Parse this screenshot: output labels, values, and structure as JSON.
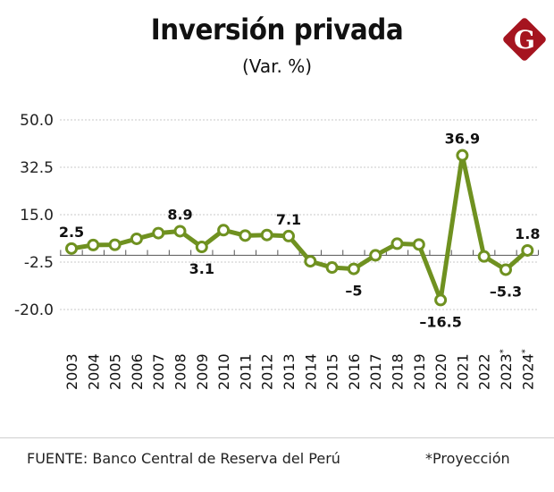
{
  "header": {
    "title": "Inversión privada",
    "subtitle": "(Var. %)",
    "logo_letter": "G"
  },
  "colors": {
    "line": "#6f9120",
    "logo": "#a5141f",
    "grid": "#c8c8c8",
    "text": "#111111"
  },
  "footer": {
    "source": "FUENTE: Banco Central de Reserva del Perú",
    "note": "*Proyección"
  },
  "chart_data": {
    "type": "line",
    "title": "Inversión privada",
    "subtitle": "(Var. %)",
    "xlabel": "",
    "ylabel": "",
    "ylim": [
      -20.0,
      50.0
    ],
    "yticks": [
      50.0,
      32.5,
      15.0,
      -2.5,
      -20.0
    ],
    "ytick_labels": [
      "50.0",
      "32.5",
      "15.0",
      "-2.5",
      "-20.0"
    ],
    "grid": true,
    "categories": [
      "2003",
      "2004",
      "2005",
      "2006",
      "2007",
      "2008",
      "2009",
      "2010",
      "2011",
      "2012",
      "2013",
      "2014",
      "2015",
      "2016",
      "2017",
      "2018",
      "2019",
      "2020",
      "2021",
      "2022",
      "2023*",
      "2024*"
    ],
    "series": [
      {
        "name": "Inversión privada (Var. %)",
        "values": [
          2.5,
          3.8,
          3.9,
          6.1,
          8.2,
          8.9,
          3.1,
          9.3,
          7.3,
          7.5,
          7.1,
          -2.2,
          -4.5,
          -5.0,
          0.0,
          4.3,
          4.0,
          -16.5,
          36.9,
          -0.4,
          -5.3,
          1.8
        ]
      }
    ],
    "data_labels": [
      {
        "index": 0,
        "text": "2.5",
        "position": "above"
      },
      {
        "index": 5,
        "text": "8.9",
        "position": "above"
      },
      {
        "index": 6,
        "text": "3.1",
        "position": "below"
      },
      {
        "index": 10,
        "text": "7.1",
        "position": "above"
      },
      {
        "index": 13,
        "text": "-5",
        "position": "below"
      },
      {
        "index": 17,
        "text": "-16.5",
        "position": "below"
      },
      {
        "index": 18,
        "text": "36.9",
        "position": "above"
      },
      {
        "index": 20,
        "text": "-5.3",
        "position": "below"
      },
      {
        "index": 21,
        "text": "1.8",
        "position": "above"
      }
    ],
    "projection_marker": "*"
  }
}
